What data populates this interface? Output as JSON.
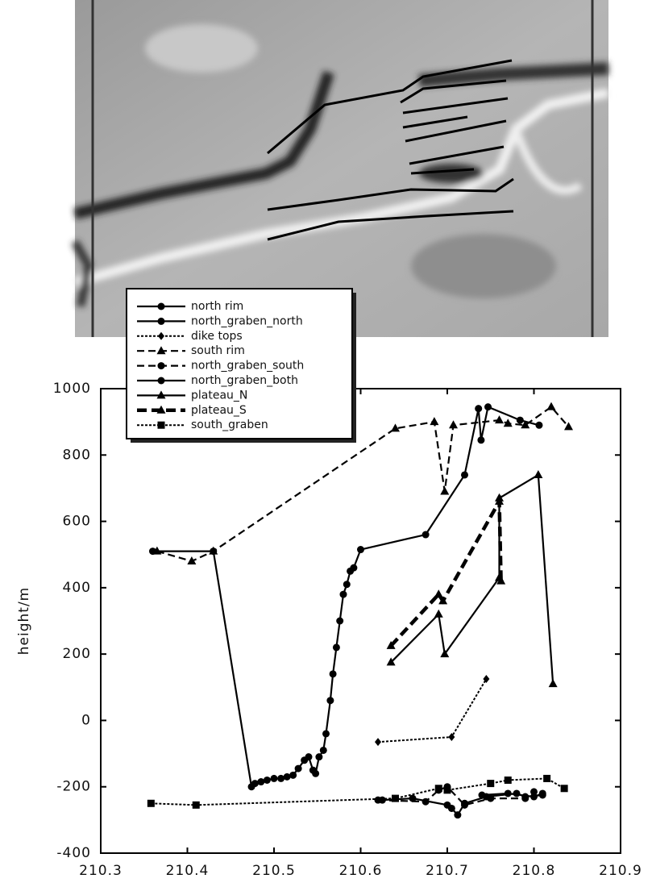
{
  "chart_data": {
    "type": "line",
    "y_label": "height/m",
    "xlim": [
      210.3,
      210.9
    ],
    "xticks": [
      210.3,
      210.4,
      210.5,
      210.6,
      210.7,
      210.8,
      210.9
    ],
    "ylim": [
      -400,
      1000
    ],
    "yticks": [
      -400,
      -200,
      0,
      200,
      400,
      600,
      800,
      1000
    ],
    "legend": "top-left",
    "series": [
      {
        "name": "north rim",
        "color": "#000000",
        "line_style": "solid",
        "marker": "circle",
        "x": [
          210.36,
          210.43,
          210.474,
          210.478,
          210.485,
          210.492,
          210.5,
          210.508,
          210.515,
          210.522,
          210.528,
          210.535,
          210.54,
          210.545,
          210.548,
          210.552,
          210.557,
          210.56,
          210.565,
          210.568,
          210.572,
          210.576,
          210.58,
          210.584,
          210.588,
          210.592,
          210.6,
          210.675,
          210.72,
          210.736,
          210.739,
          210.747,
          210.784,
          210.806
        ],
        "values": [
          510,
          510,
          -200,
          -190,
          -185,
          -180,
          -175,
          -175,
          -170,
          -165,
          -145,
          -120,
          -110,
          -150,
          -160,
          -110,
          -90,
          -40,
          60,
          140,
          220,
          300,
          380,
          410,
          450,
          460,
          515,
          560,
          740,
          940,
          845,
          945,
          905,
          890
        ]
      },
      {
        "name": "north_graben_north",
        "color": "#000000",
        "line_style": "solid",
        "marker": "circle",
        "x": [
          210.625,
          210.66,
          210.7,
          210.705,
          210.712,
          210.72,
          210.745,
          210.78,
          210.79,
          210.81
        ],
        "values": [
          -240,
          -235,
          -255,
          -265,
          -285,
          -250,
          -230,
          -220,
          -230,
          -225
        ]
      },
      {
        "name": "dike tops",
        "color": "#000000",
        "line_style": "dotted",
        "marker": "diamond",
        "x": [
          210.62,
          210.705,
          210.745
        ],
        "values": [
          -65,
          -50,
          125
        ]
      },
      {
        "name": "south rim",
        "color": "#000000",
        "line_style": "dashed",
        "marker": "triangle",
        "x": [
          210.365,
          210.405,
          210.43,
          210.64,
          210.685,
          210.697,
          210.707,
          210.76,
          210.77,
          210.79,
          210.82,
          210.84
        ],
        "values": [
          510,
          480,
          510,
          880,
          900,
          690,
          890,
          905,
          895,
          890,
          945,
          885
        ]
      },
      {
        "name": "north_graben_south",
        "color": "#000000",
        "line_style": "dashed",
        "marker": "circle",
        "x": [
          210.62,
          210.675,
          210.69,
          210.7,
          210.72,
          210.75,
          210.79,
          210.8
        ],
        "values": [
          -240,
          -245,
          -210,
          -200,
          -255,
          -235,
          -235,
          -215
        ]
      },
      {
        "name": "north_graben_both",
        "color": "#000000",
        "line_style": "solid",
        "marker": "circle",
        "x": [
          210.74,
          210.77,
          210.8,
          210.81
        ],
        "values": [
          -225,
          -220,
          -230,
          -220
        ]
      },
      {
        "name": "plateau_N",
        "color": "#000000",
        "line_style": "solid",
        "marker": "triangle",
        "x": [
          210.635,
          210.69,
          210.697,
          210.76,
          210.76,
          210.805,
          210.822
        ],
        "values": [
          175,
          320,
          200,
          430,
          670,
          740,
          110
        ]
      },
      {
        "name": "plateau_S",
        "color": "#000000",
        "line_style": "bold-dashed",
        "marker": "triangle",
        "x": [
          210.635,
          210.69,
          210.695,
          210.76,
          210.762
        ],
        "values": [
          225,
          380,
          360,
          660,
          420
        ]
      },
      {
        "name": "south_graben",
        "color": "#000000",
        "line_style": "dotted",
        "marker": "square",
        "x": [
          210.358,
          210.41,
          210.64,
          210.69,
          210.7,
          210.75,
          210.77,
          210.815,
          210.835
        ],
        "values": [
          -250,
          -255,
          -235,
          -205,
          -210,
          -190,
          -180,
          -175,
          -205
        ]
      }
    ]
  }
}
